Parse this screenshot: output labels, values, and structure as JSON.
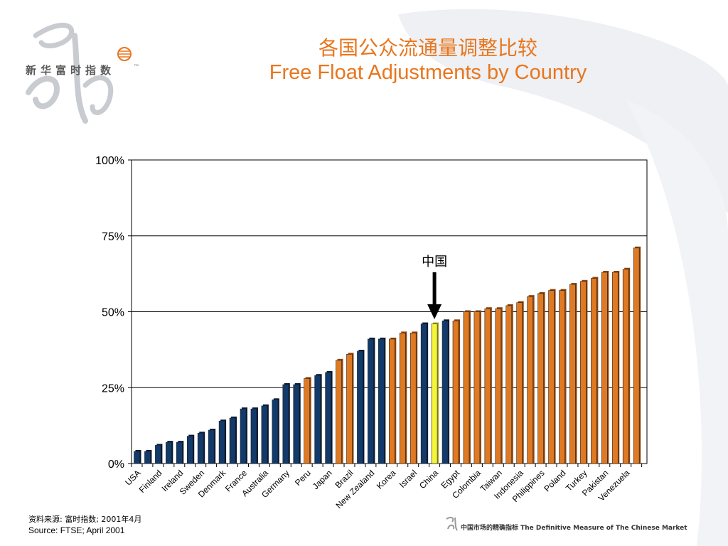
{
  "slide": {
    "title_cn": "各国公众流通量调整比较",
    "title_en": "Free Float Adjustments by Country",
    "logo_text": "新华富时指数",
    "logo_tm": "™",
    "source_cn": "资料来源: 富时指数; 2001年4月",
    "source_en": "Source: FTSE; April 2001",
    "footer_text": "中国市场的精确指标 The Definitive Measure of The Chinese Market"
  },
  "colors": {
    "navy": "#123a6b",
    "orange": "#e07a22",
    "highlight": "#f5f53a",
    "title": "#e8761e"
  },
  "chart_data": {
    "type": "bar",
    "ylim": [
      0,
      100
    ],
    "yticks": [
      "0%",
      "25%",
      "50%",
      "75%",
      "100%"
    ],
    "grid": true,
    "annotation": {
      "text": "中国",
      "target": "China"
    },
    "values": [
      4,
      4,
      6,
      7,
      7,
      9,
      10,
      11,
      14,
      15,
      18,
      18,
      19,
      21,
      26,
      26,
      28,
      29,
      30,
      34,
      36,
      37,
      41,
      41,
      41,
      43,
      43,
      46,
      46,
      47,
      47,
      50,
      50,
      51,
      51,
      52,
      53,
      55,
      56,
      57,
      57,
      59,
      60,
      61,
      63,
      63,
      64,
      71
    ],
    "bar_colors": [
      "navy",
      "navy",
      "navy",
      "navy",
      "navy",
      "navy",
      "navy",
      "navy",
      "navy",
      "navy",
      "navy",
      "navy",
      "navy",
      "navy",
      "navy",
      "navy",
      "orange",
      "navy",
      "navy",
      "orange",
      "orange",
      "navy",
      "navy",
      "navy",
      "orange",
      "orange",
      "orange",
      "navy",
      "highlight",
      "navy",
      "orange",
      "orange",
      "orange",
      "orange",
      "orange",
      "orange",
      "orange",
      "orange",
      "orange",
      "orange",
      "orange",
      "orange",
      "orange",
      "orange",
      "orange",
      "orange",
      "orange",
      "orange"
    ],
    "x_labels": [
      {
        "text": "USA",
        "bar": 0
      },
      {
        "text": "Finland",
        "bar": 2
      },
      {
        "text": "Ireland",
        "bar": 4
      },
      {
        "text": "Sweden",
        "bar": 6
      },
      {
        "text": "Denmark",
        "bar": 8
      },
      {
        "text": "France",
        "bar": 10
      },
      {
        "text": "Australia",
        "bar": 12
      },
      {
        "text": "Germany",
        "bar": 14
      },
      {
        "text": "Peru",
        "bar": 16
      },
      {
        "text": "Japan",
        "bar": 18
      },
      {
        "text": "Brazil",
        "bar": 20
      },
      {
        "text": "New Zealand",
        "bar": 22
      },
      {
        "text": "Korea",
        "bar": 24
      },
      {
        "text": "Israel",
        "bar": 26
      },
      {
        "text": "China",
        "bar": 28
      },
      {
        "text": "Egypt",
        "bar": 30
      },
      {
        "text": "Colombia",
        "bar": 32
      },
      {
        "text": "Taiwan",
        "bar": 34
      },
      {
        "text": "Indonesia",
        "bar": 36
      },
      {
        "text": "Philippines",
        "bar": 38
      },
      {
        "text": "Poland",
        "bar": 40
      },
      {
        "text": "Turkey",
        "bar": 42
      },
      {
        "text": "Pakistan",
        "bar": 44
      },
      {
        "text": "Venezuela",
        "bar": 46
      }
    ]
  }
}
